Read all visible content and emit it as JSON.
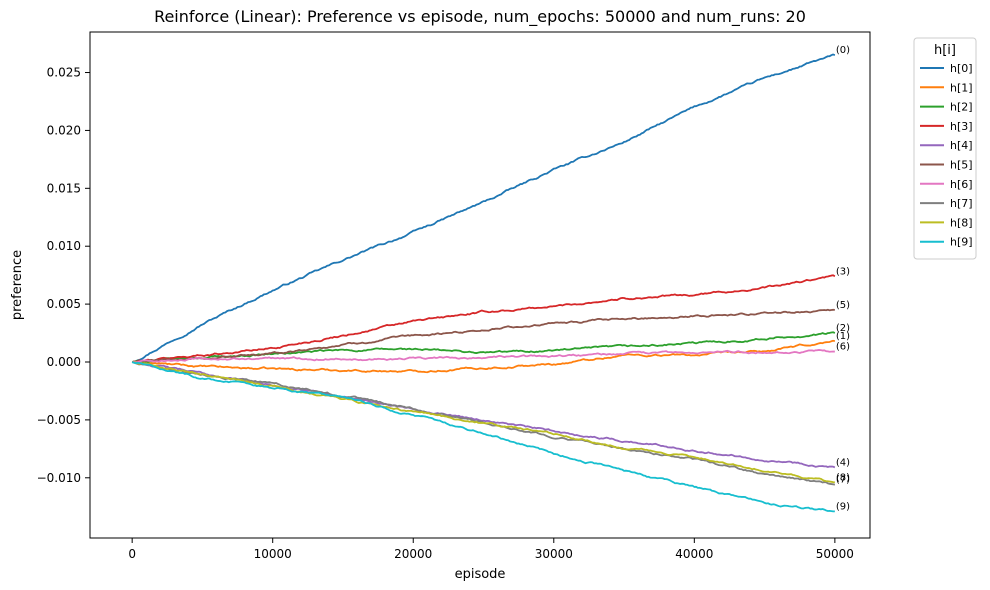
{
  "chart_data": {
    "type": "line",
    "title": "Reinforce (Linear): Preference vs episode, num_epochs: 50000 and num_runs: 20",
    "xlabel": "episode",
    "ylabel": "preference",
    "xlim": [
      -3000,
      52500
    ],
    "ylim": [
      -0.0152,
      0.0285
    ],
    "xticks": [
      0,
      10000,
      20000,
      30000,
      40000,
      50000
    ],
    "xtick_labels": [
      "0",
      "10000",
      "20000",
      "30000",
      "40000",
      "50000"
    ],
    "yticks": [
      -0.01,
      -0.005,
      0.0,
      0.005,
      0.01,
      0.015,
      0.02,
      0.025
    ],
    "ytick_labels": [
      "−0.010",
      "−0.005",
      "0.000",
      "0.005",
      "0.010",
      "0.015",
      "0.020",
      "0.025"
    ],
    "grid": false,
    "legend_title": "h[i]",
    "legend_position": "outside-top-right",
    "x": [
      0,
      5000,
      10000,
      15000,
      20000,
      25000,
      30000,
      35000,
      40000,
      45000,
      50000
    ],
    "series": [
      {
        "name": "h[0]",
        "label": "(0)",
        "color": "#1f77b4",
        "values": [
          0,
          0.0033,
          0.0062,
          0.0088,
          0.0112,
          0.0138,
          0.0166,
          0.019,
          0.022,
          0.0245,
          0.0265
        ]
      },
      {
        "name": "h[1]",
        "label": "(1)",
        "color": "#ff7f0e",
        "values": [
          0,
          -0.0004,
          -0.0006,
          -0.0007,
          -0.0008,
          -0.0005,
          -0.0002,
          0.0006,
          0.0006,
          0.0009,
          0.0018
        ]
      },
      {
        "name": "h[2]",
        "label": "(2)",
        "color": "#2ca02c",
        "values": [
          0,
          0.0004,
          0.0007,
          0.001,
          0.0011,
          0.0008,
          0.001,
          0.0013,
          0.0016,
          0.002,
          0.0025
        ]
      },
      {
        "name": "h[3]",
        "label": "(3)",
        "color": "#d62728",
        "values": [
          0,
          0.0006,
          0.0012,
          0.0023,
          0.0035,
          0.0043,
          0.0048,
          0.0055,
          0.0058,
          0.0064,
          0.0074
        ]
      },
      {
        "name": "h[4]",
        "label": "(4)",
        "color": "#9467bd",
        "values": [
          0,
          -0.001,
          -0.002,
          -0.003,
          -0.004,
          -0.005,
          -0.006,
          -0.0068,
          -0.0076,
          -0.0084,
          -0.0091
        ]
      },
      {
        "name": "h[5]",
        "label": "(5)",
        "color": "#8c564b",
        "values": [
          0,
          0.0003,
          0.0007,
          0.0015,
          0.0022,
          0.0028,
          0.0033,
          0.0037,
          0.004,
          0.0042,
          0.0045
        ]
      },
      {
        "name": "h[6]",
        "label": "(6)",
        "color": "#e377c2",
        "values": [
          0,
          0.0002,
          0.0003,
          0.0003,
          0.0003,
          0.0004,
          0.0005,
          0.0007,
          0.0008,
          0.0009,
          0.0009
        ]
      },
      {
        "name": "h[7]",
        "label": "(7)",
        "color": "#7f7f7f",
        "values": [
          0,
          -0.001,
          -0.0019,
          -0.0029,
          -0.004,
          -0.0052,
          -0.0064,
          -0.0075,
          -0.0084,
          -0.0097,
          -0.0106
        ]
      },
      {
        "name": "h[8]",
        "label": "(8)",
        "color": "#bcbd22",
        "values": [
          0,
          -0.0011,
          -0.0021,
          -0.0032,
          -0.0043,
          -0.0053,
          -0.0062,
          -0.0074,
          -0.0082,
          -0.0093,
          -0.0104
        ]
      },
      {
        "name": "h[9]",
        "label": "(9)",
        "color": "#17becf",
        "values": [
          0,
          -0.0014,
          -0.0022,
          -0.0031,
          -0.0046,
          -0.0061,
          -0.0079,
          -0.0094,
          -0.0108,
          -0.0122,
          -0.0129
        ]
      }
    ]
  }
}
